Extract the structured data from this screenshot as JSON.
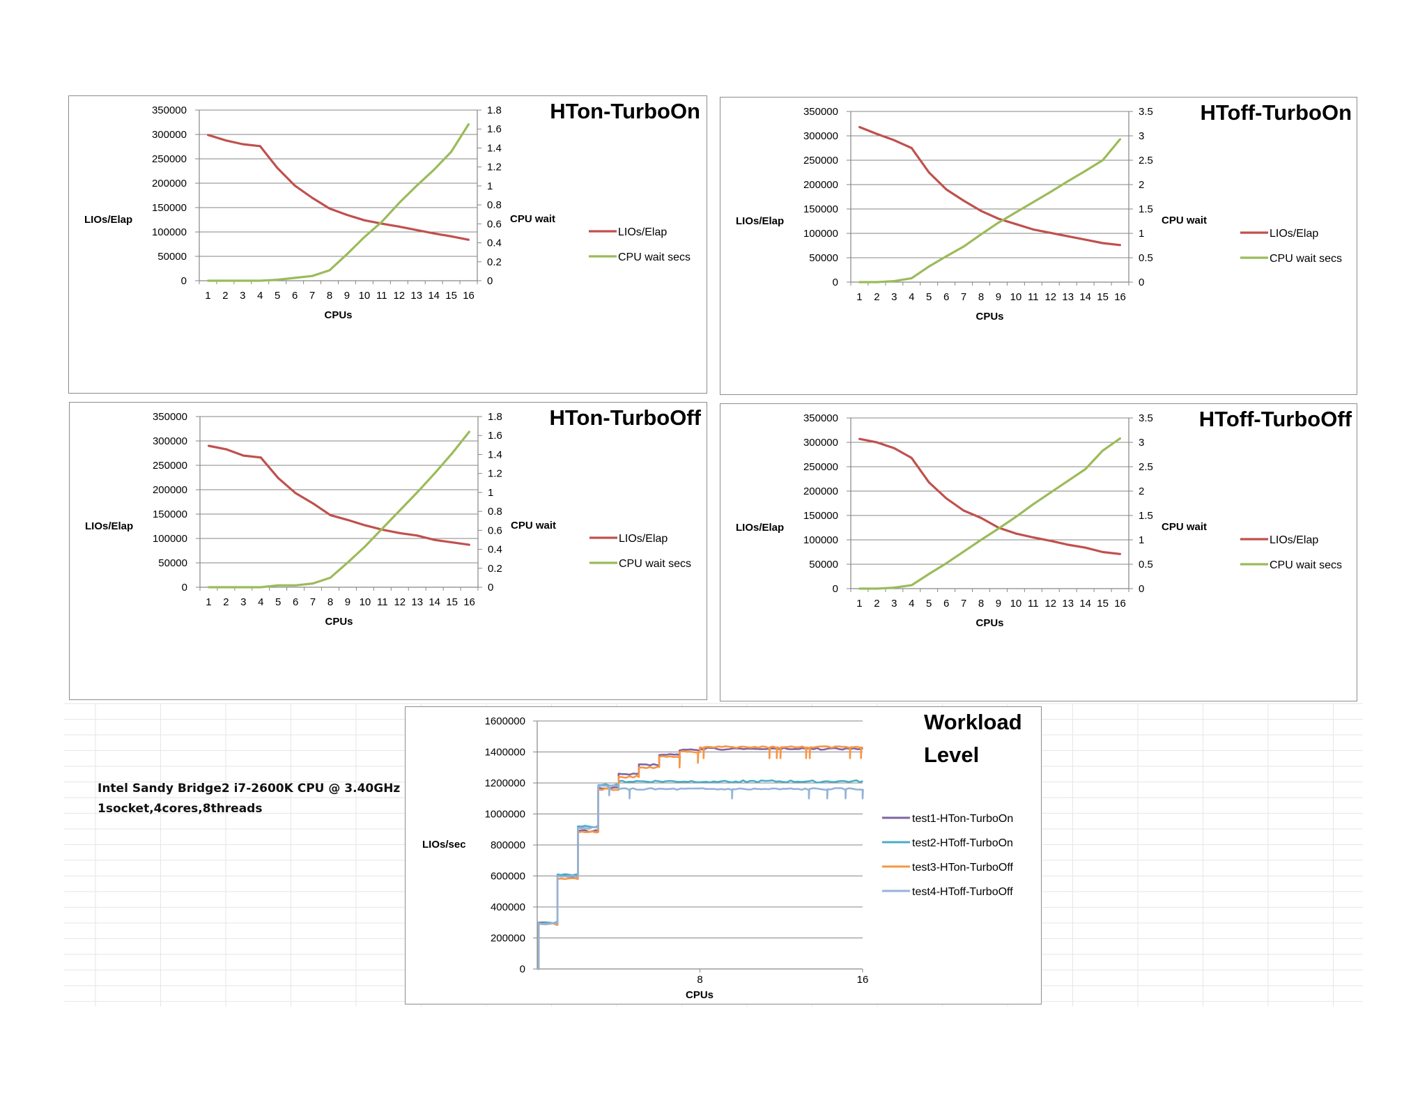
{
  "note": {
    "line1": "Intel Sandy Bridge2 i7-2600K CPU @ 3.40GHz",
    "line2": "1socket,4cores,8threads"
  },
  "colors": {
    "lios": "#c0504d",
    "wait": "#9bbb59",
    "grid": "#868686",
    "axis": "#868686"
  },
  "chart_data": [
    {
      "type": "line",
      "title": "HTon-TurboOn",
      "xlabel": "CPUs",
      "ylabel": "LIOs/Elap",
      "y2label": "CPU wait",
      "categories": [
        "1",
        "2",
        "3",
        "4",
        "5",
        "6",
        "7",
        "8",
        "9",
        "10",
        "11",
        "12",
        "13",
        "14",
        "15",
        "16"
      ],
      "ylim": [
        0,
        350000
      ],
      "yticks": [
        0,
        50000,
        100000,
        150000,
        200000,
        250000,
        300000,
        350000
      ],
      "y2lim": [
        0,
        1.8
      ],
      "y2ticks": [
        "0",
        "0.2",
        "0.4",
        "0.6",
        "0.8",
        "1",
        "1.2",
        "1.4",
        "1.6",
        "1.8"
      ],
      "legend_position": "right",
      "series": [
        {
          "name": "LIOs/Elap",
          "axis": "left",
          "color": "#c0504d",
          "values": [
            299000,
            288000,
            280000,
            276000,
            231000,
            195000,
            170000,
            148000,
            135000,
            124000,
            117000,
            111000,
            104000,
            97000,
            91000,
            84000
          ]
        },
        {
          "name": "CPU wait secs",
          "axis": "right",
          "color": "#9bbb59",
          "values": [
            0,
            0,
            0,
            0,
            0.01,
            0.03,
            0.05,
            0.11,
            0.28,
            0.46,
            0.62,
            0.82,
            1.0,
            1.17,
            1.36,
            1.65
          ]
        }
      ]
    },
    {
      "type": "line",
      "title": "HToff-TurboOn",
      "xlabel": "CPUs",
      "ylabel": "LIOs/Elap",
      "y2label": "CPU wait",
      "categories": [
        "1",
        "2",
        "3",
        "4",
        "5",
        "6",
        "7",
        "8",
        "9",
        "10",
        "11",
        "12",
        "13",
        "14",
        "15",
        "16"
      ],
      "ylim": [
        0,
        350000
      ],
      "yticks": [
        0,
        50000,
        100000,
        150000,
        200000,
        250000,
        300000,
        350000
      ],
      "y2lim": [
        0,
        3.5
      ],
      "y2ticks": [
        "0",
        "0.5",
        "1",
        "1.5",
        "2",
        "2.5",
        "3",
        "3.5"
      ],
      "legend_position": "right",
      "series": [
        {
          "name": "LIOs/Elap",
          "axis": "left",
          "color": "#c0504d",
          "values": [
            318000,
            304000,
            291000,
            275000,
            225000,
            190000,
            167000,
            146000,
            130000,
            119000,
            108000,
            101000,
            94000,
            87000,
            80000,
            76000
          ]
        },
        {
          "name": "CPU wait secs",
          "axis": "right",
          "color": "#9bbb59",
          "values": [
            0,
            0,
            0.02,
            0.08,
            0.32,
            0.53,
            0.73,
            0.98,
            1.22,
            1.43,
            1.64,
            1.85,
            2.07,
            2.28,
            2.5,
            2.93
          ]
        }
      ]
    },
    {
      "type": "line",
      "title": "HTon-TurboOff",
      "xlabel": "CPUs",
      "ylabel": "LIOs/Elap",
      "y2label": "CPU wait",
      "categories": [
        "1",
        "2",
        "3",
        "4",
        "5",
        "6",
        "7",
        "8",
        "9",
        "10",
        "11",
        "12",
        "13",
        "14",
        "15",
        "16"
      ],
      "ylim": [
        0,
        350000
      ],
      "yticks": [
        0,
        50000,
        100000,
        150000,
        200000,
        250000,
        300000,
        350000
      ],
      "y2lim": [
        0,
        1.8
      ],
      "y2ticks": [
        "0",
        "0.2",
        "0.4",
        "0.6",
        "0.8",
        "1",
        "1.2",
        "1.4",
        "1.6",
        "1.8"
      ],
      "legend_position": "right",
      "series": [
        {
          "name": "LIOs/Elap",
          "axis": "left",
          "color": "#c0504d",
          "values": [
            290000,
            283000,
            270000,
            266000,
            224000,
            193000,
            172000,
            148000,
            138000,
            127000,
            118000,
            111000,
            106000,
            97000,
            92000,
            87000
          ]
        },
        {
          "name": "CPU wait secs",
          "axis": "right",
          "color": "#9bbb59",
          "values": [
            0,
            0,
            0,
            0,
            0.02,
            0.02,
            0.04,
            0.1,
            0.26,
            0.43,
            0.62,
            0.81,
            1.0,
            1.2,
            1.41,
            1.64
          ]
        }
      ]
    },
    {
      "type": "line",
      "title": "HToff-TurboOff",
      "xlabel": "CPUs",
      "ylabel": "LIOs/Elap",
      "y2label": "CPU wait",
      "categories": [
        "1",
        "2",
        "3",
        "4",
        "5",
        "6",
        "7",
        "8",
        "9",
        "10",
        "11",
        "12",
        "13",
        "14",
        "15",
        "16"
      ],
      "ylim": [
        0,
        350000
      ],
      "yticks": [
        0,
        50000,
        100000,
        150000,
        200000,
        250000,
        300000,
        350000
      ],
      "y2lim": [
        0,
        3.5
      ],
      "y2ticks": [
        "0",
        "0.5",
        "1",
        "1.5",
        "2",
        "2.5",
        "3",
        "3.5"
      ],
      "legend_position": "right",
      "series": [
        {
          "name": "LIOs/Elap",
          "axis": "left",
          "color": "#c0504d",
          "values": [
            307000,
            300000,
            288000,
            268000,
            218000,
            185000,
            160000,
            145000,
            125000,
            113000,
            105000,
            98000,
            90000,
            84000,
            75000,
            71000
          ]
        },
        {
          "name": "CPU wait secs",
          "axis": "right",
          "color": "#9bbb59",
          "values": [
            0,
            0,
            0.02,
            0.07,
            0.3,
            0.52,
            0.76,
            1.0,
            1.23,
            1.47,
            1.73,
            1.97,
            2.21,
            2.45,
            2.83,
            3.08
          ]
        }
      ]
    },
    {
      "type": "line",
      "title": "Workload Level",
      "title_lines": [
        "Workload",
        "Level"
      ],
      "xlabel": "CPUs",
      "ylabel": "LIOs/sec",
      "xlim": [
        0,
        16
      ],
      "xticks": [
        8,
        16
      ],
      "ylim": [
        0,
        1600000
      ],
      "yticks": [
        0,
        200000,
        400000,
        600000,
        800000,
        1000000,
        1200000,
        1400000,
        1600000
      ],
      "legend_position": "right",
      "series": [
        {
          "name": "test1-HTon-TurboOn",
          "color": "#8064a2",
          "steps": [
            [
              1,
              300000
            ],
            [
              2,
              600000
            ],
            [
              3,
              890000
            ],
            [
              4,
              1170000
            ],
            [
              5,
              1260000
            ],
            [
              6,
              1320000
            ],
            [
              7,
              1380000
            ],
            [
              8,
              1410000
            ],
            [
              16,
              1420000
            ]
          ]
        },
        {
          "name": "test2-HToff-TurboOn",
          "color": "#4bacc6",
          "steps": [
            [
              1,
              300000
            ],
            [
              2,
              610000
            ],
            [
              3,
              920000
            ],
            [
              4,
              1185000
            ],
            [
              16,
              1210000
            ]
          ]
        },
        {
          "name": "test3-HTon-TurboOff",
          "color": "#f79646",
          "steps": [
            [
              1,
              290000
            ],
            [
              2,
              580000
            ],
            [
              3,
              880000
            ],
            [
              4,
              1160000
            ],
            [
              5,
              1240000
            ],
            [
              6,
              1300000
            ],
            [
              7,
              1370000
            ],
            [
              8,
              1400000
            ],
            [
              16,
              1430000
            ]
          ]
        },
        {
          "name": "test4-HToff-TurboOff",
          "color": "#95b3d7",
          "steps": [
            [
              1,
              295000
            ],
            [
              2,
              600000
            ],
            [
              3,
              910000
            ],
            [
              4,
              1180000
            ],
            [
              16,
              1160000
            ]
          ]
        }
      ]
    }
  ]
}
